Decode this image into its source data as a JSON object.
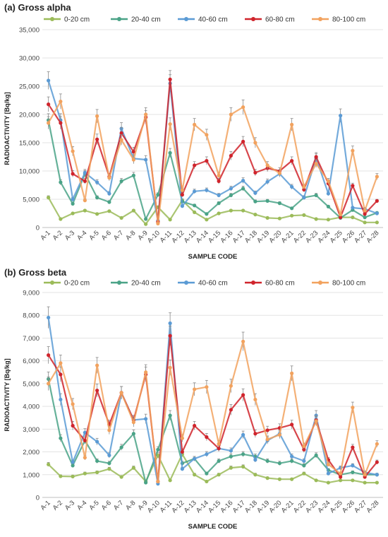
{
  "chart_data": [
    {
      "type": "line",
      "title": "(a) Gross alpha",
      "xlabel": "SAMPLE CODE",
      "ylabel": "RADIOACTIVITY [Bq/kg]",
      "ylim": [
        0,
        35000
      ],
      "yticks": [
        0,
        5000,
        10000,
        15000,
        20000,
        25000,
        30000,
        35000
      ],
      "ytick_labels": [
        "0",
        "5,000",
        "10,000",
        "15,000",
        "20,000",
        "25,000",
        "30,000",
        "35,000"
      ],
      "grid": "horizontal",
      "legend": "top",
      "categories": [
        "A-1",
        "A-2",
        "A-3",
        "A-4",
        "A-5",
        "A-6",
        "A-7",
        "A-8",
        "A-9",
        "A-10",
        "A-11",
        "A-12",
        "A-13",
        "A-14",
        "A-15",
        "A-16",
        "A-17",
        "A-18",
        "A-19",
        "A-20",
        "A-21",
        "A-22",
        "A-23",
        "A-24",
        "A-25",
        "A-26",
        "A-27",
        "A-28"
      ],
      "series": [
        {
          "name": "0-20 cm",
          "color": "#9bbb59",
          "values": [
            5300,
            1500,
            2500,
            3000,
            2400,
            2900,
            1700,
            3000,
            600,
            3600,
            1400,
            4800,
            2700,
            1400,
            2500,
            3000,
            3000,
            2300,
            1700,
            1600,
            2100,
            2200,
            1500,
            1400,
            1800,
            1800,
            900,
            900
          ]
        },
        {
          "name": "20-40 cm",
          "color": "#4aa387",
          "values": [
            19000,
            8000,
            4200,
            9500,
            5300,
            4500,
            8200,
            9200,
            1500,
            5800,
            13200,
            4600,
            3900,
            2400,
            4300,
            5700,
            6900,
            4600,
            4700,
            4300,
            3400,
            5300,
            5700,
            3700,
            1700,
            3100,
            1800,
            2600
          ]
        },
        {
          "name": "40-60 cm",
          "color": "#5b9bd5",
          "values": [
            26000,
            19000,
            5000,
            9700,
            8000,
            6000,
            17500,
            12200,
            12000,
            1200,
            25500,
            3800,
            6400,
            6600,
            5700,
            6900,
            8300,
            6100,
            8100,
            9500,
            7200,
            5300,
            12300,
            6000,
            19800,
            3500,
            3300,
            2500
          ]
        },
        {
          "name": "60-80 cm",
          "color": "#d0242c",
          "values": [
            21800,
            18500,
            9500,
            8200,
            15600,
            9000,
            16700,
            13400,
            19500,
            1000,
            26200,
            5800,
            11000,
            11800,
            8200,
            12700,
            15200,
            9700,
            10500,
            10000,
            11800,
            6700,
            12500,
            7800,
            1800,
            7400,
            2400,
            4700
          ]
        },
        {
          "name": "80-100 cm",
          "color": "#f2a25e",
          "values": [
            18500,
            22300,
            13500,
            4800,
            19700,
            8800,
            15500,
            12000,
            20000,
            700,
            18300,
            6600,
            18200,
            16400,
            9200,
            20000,
            21300,
            15000,
            11000,
            9600,
            18200,
            7200,
            11300,
            8200,
            2300,
            13600,
            3000,
            9000
          ]
        }
      ]
    },
    {
      "type": "line",
      "title": "(b) Gross beta",
      "xlabel": "SAMPLE CODE",
      "ylabel": "RADIOACTIVITY [Bq/kg]",
      "ylim": [
        0,
        9000
      ],
      "yticks": [
        0,
        1000,
        2000,
        3000,
        4000,
        5000,
        6000,
        7000,
        8000,
        9000
      ],
      "ytick_labels": [
        "0",
        "1,000",
        "2,000",
        "3,000",
        "4,000",
        "5,000",
        "6,000",
        "7,000",
        "8,000",
        "9,000"
      ],
      "grid": "horizontal",
      "legend": "top",
      "categories": [
        "A-1",
        "A-2",
        "A-3",
        "A-4",
        "A-5",
        "A-6",
        "A-7",
        "A-8",
        "A-9",
        "A-10",
        "A-11",
        "A-12",
        "A-13",
        "A-14",
        "A-15",
        "A-16",
        "A-17",
        "A-18",
        "A-19",
        "A-20",
        "A-21",
        "A-22",
        "A-23",
        "A-24",
        "A-25",
        "A-26",
        "A-27",
        "A-28"
      ],
      "series": [
        {
          "name": "0-20 cm",
          "color": "#9bbb59",
          "values": [
            1450,
            930,
            920,
            1050,
            1100,
            1250,
            900,
            1300,
            700,
            1850,
            750,
            1900,
            1000,
            700,
            1000,
            1300,
            1350,
            1000,
            850,
            800,
            800,
            1050,
            750,
            650,
            750,
            750,
            650,
            650
          ]
        },
        {
          "name": "20-40 cm",
          "color": "#4aa387",
          "values": [
            5200,
            2600,
            1400,
            2500,
            1600,
            1500,
            2200,
            2800,
            650,
            2100,
            3600,
            1500,
            1700,
            1050,
            1600,
            1800,
            1900,
            1800,
            1600,
            1500,
            1600,
            1400,
            1850,
            1200,
            1000,
            1100,
            1000,
            1000
          ]
        },
        {
          "name": "40-60 cm",
          "color": "#5b9bd5",
          "values": [
            7900,
            4300,
            1550,
            2850,
            2450,
            1850,
            4600,
            3400,
            3450,
            600,
            7650,
            1250,
            1700,
            1900,
            2150,
            2050,
            2750,
            1650,
            2500,
            2800,
            1800,
            1600,
            3600,
            1050,
            1300,
            1400,
            1100,
            1000
          ]
        },
        {
          "name": "60-80 cm",
          "color": "#d0242c",
          "values": [
            6250,
            5400,
            3150,
            2500,
            4700,
            3200,
            4600,
            3400,
            5400,
            700,
            7100,
            2000,
            3150,
            2650,
            2150,
            3850,
            4500,
            2800,
            2950,
            3050,
            3200,
            2100,
            3400,
            1650,
            900,
            2200,
            900,
            1550
          ]
        },
        {
          "name": "80-100 cm",
          "color": "#f2a25e",
          "values": [
            5000,
            5900,
            4100,
            1750,
            5800,
            2950,
            4600,
            3300,
            5500,
            700,
            5700,
            2600,
            4750,
            4850,
            2350,
            4900,
            6850,
            4300,
            2550,
            2750,
            5450,
            2250,
            3350,
            1450,
            1050,
            3950,
            1000,
            2350
          ]
        }
      ]
    }
  ]
}
